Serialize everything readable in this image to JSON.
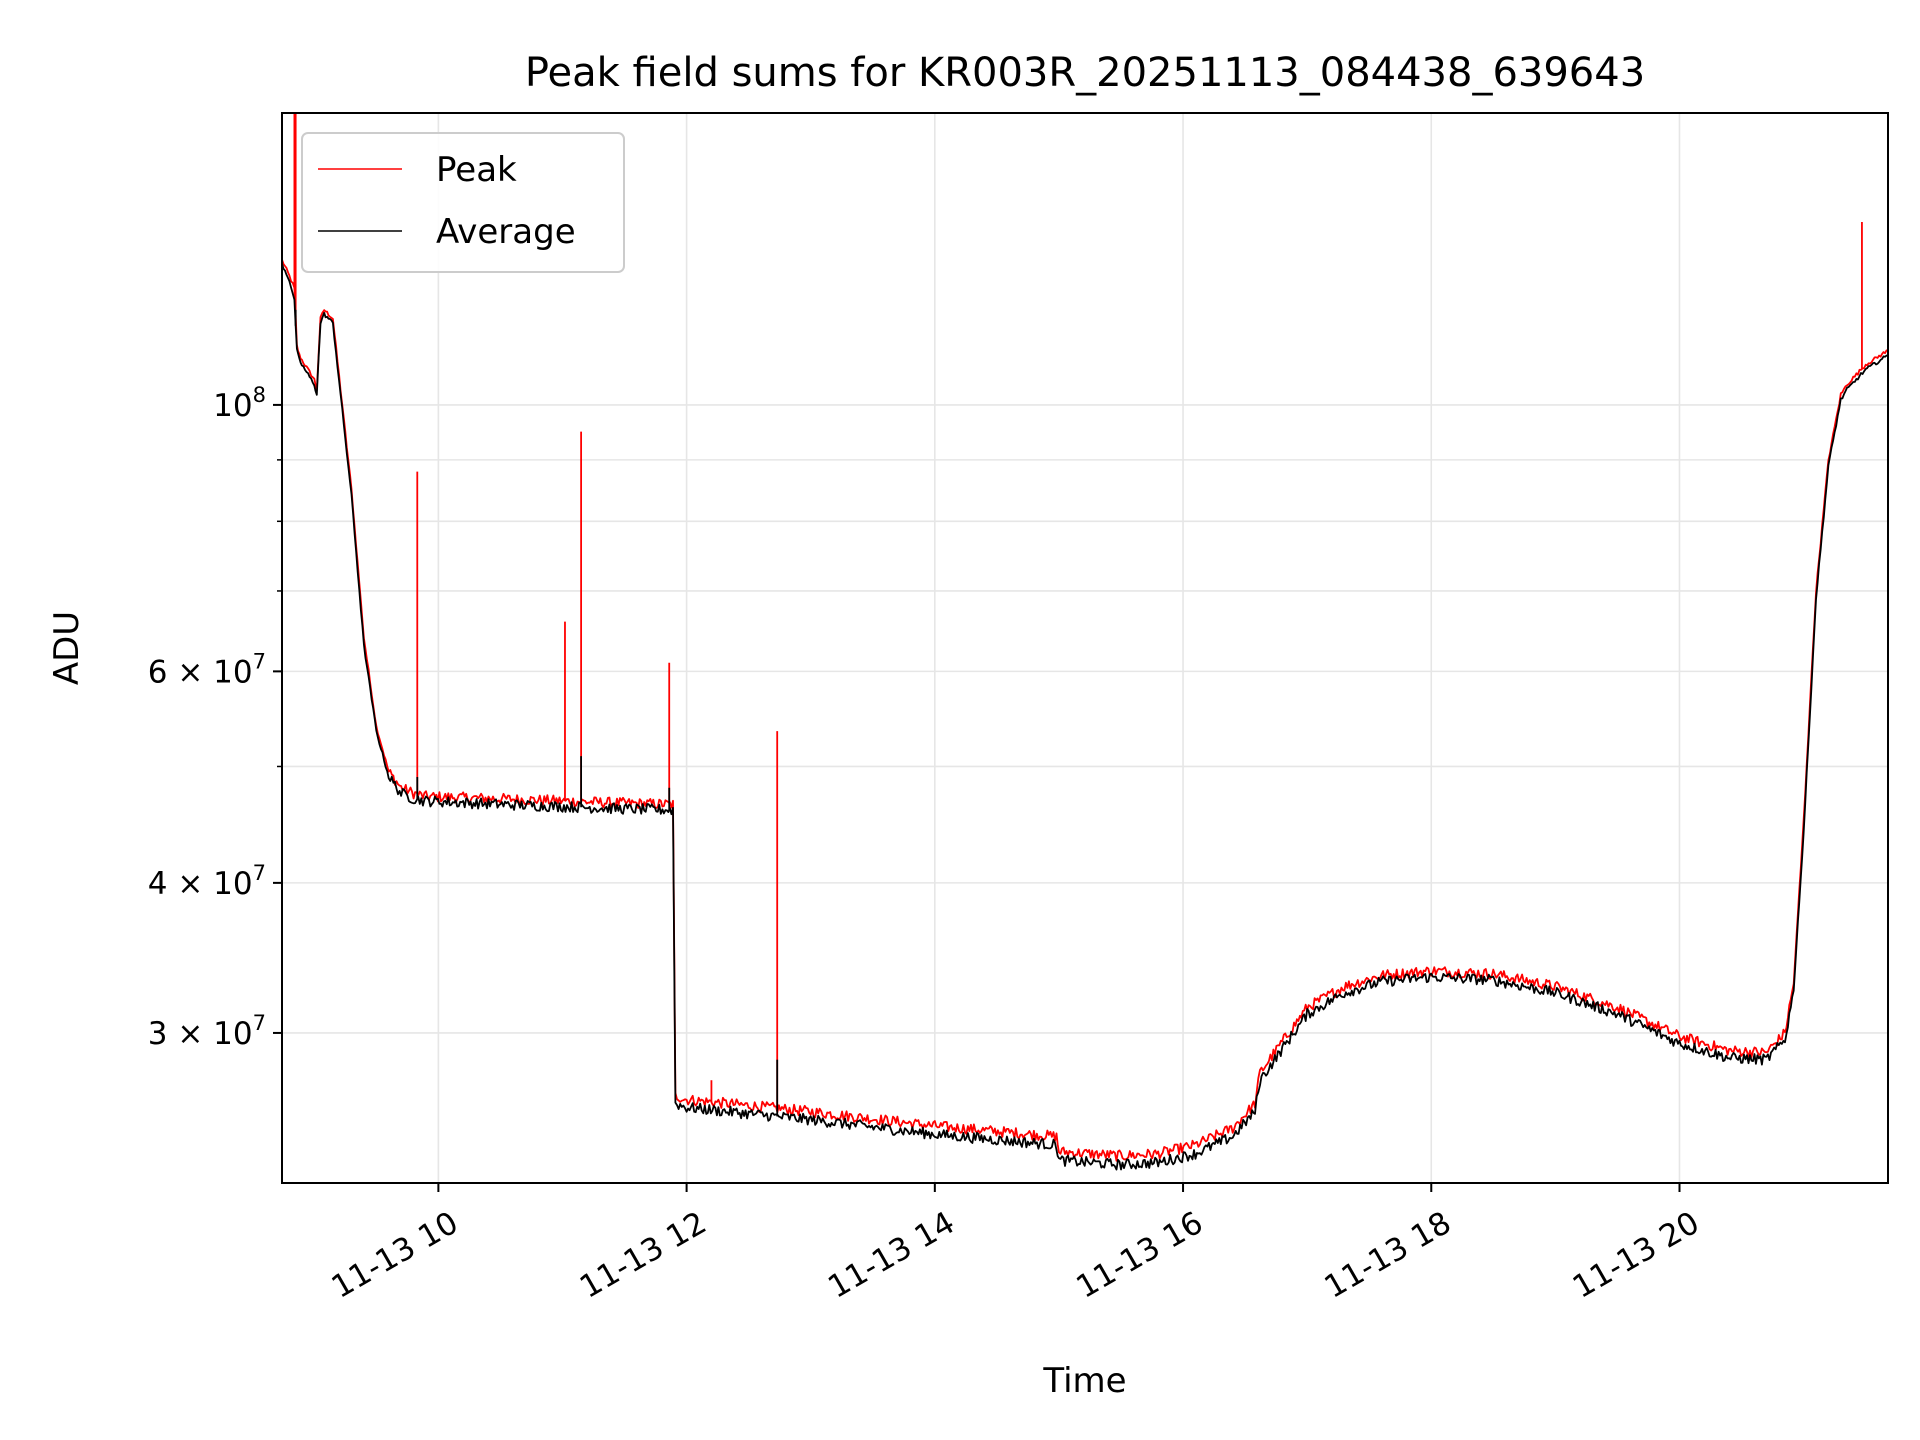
{
  "chart_data": {
    "type": "line",
    "title": "Peak field sums for KR003R_20251113_084438_639643",
    "xlabel": "Time",
    "ylabel": "ADU",
    "yscale": "log",
    "grid": true,
    "legend_position": "top-left",
    "x_unit": "hours on 2025-11-13",
    "xlim": [
      8.74,
      21.68
    ],
    "ylim": [
      22500000,
      175000000
    ],
    "x_ticks": [
      {
        "value": 10,
        "label": "11-13 10"
      },
      {
        "value": 12,
        "label": "11-13 12"
      },
      {
        "value": 14,
        "label": "11-13 14"
      },
      {
        "value": 16,
        "label": "11-13 16"
      },
      {
        "value": 18,
        "label": "11-13 18"
      },
      {
        "value": 20,
        "label": "11-13 20"
      }
    ],
    "y_ticks": [
      {
        "value": 30000000,
        "base": "3",
        "exponent": "7",
        "label": "3 × 10^7"
      },
      {
        "value": 40000000,
        "base": "4",
        "exponent": "7",
        "label": "4 × 10^7"
      },
      {
        "value": 60000000,
        "base": "6",
        "exponent": "7",
        "label": "6 × 10^7"
      },
      {
        "value": 100000000,
        "base": "10",
        "exponent": "8",
        "label": "10^8"
      }
    ],
    "y_minor_ticks": [
      50000000,
      70000000,
      80000000,
      90000000
    ],
    "series": [
      {
        "name": "Peak",
        "color": "#ff0000",
        "x": [
          8.74,
          8.8,
          8.84,
          8.86,
          8.88,
          8.9,
          9.0,
          9.02,
          9.05,
          9.08,
          9.15,
          9.3,
          9.4,
          9.5,
          9.6,
          9.7,
          9.8,
          9.9,
          10.5,
          11.0,
          11.5,
          11.89,
          11.91,
          12.0,
          12.5,
          13.0,
          14.0,
          14.98,
          15.0,
          15.5,
          15.8,
          16.1,
          16.4,
          16.58,
          16.62,
          16.8,
          17.0,
          17.3,
          17.6,
          18.0,
          18.5,
          19.0,
          19.5,
          20.0,
          20.4,
          20.7,
          20.85,
          20.92,
          21.0,
          21.1,
          21.2,
          21.3,
          21.35,
          21.5,
          21.68
        ],
        "y": [
          132000000,
          128000000,
          125000000,
          112000000,
          110000000,
          109000000,
          105000000,
          103000000,
          118000000,
          120000000,
          118000000,
          85000000,
          64000000,
          54000000,
          49500000,
          48000000,
          47500000,
          47200000,
          47000000,
          46800000,
          46600000,
          46500000,
          26600000,
          26400000,
          26100000,
          25800000,
          25100000,
          24600000,
          23900000,
          23700000,
          23800000,
          24200000,
          25000000,
          26200000,
          27800000,
          29500000,
          31500000,
          32800000,
          33500000,
          33800000,
          33600000,
          32800000,
          31500000,
          29800000,
          29000000,
          28900000,
          30000000,
          33000000,
          45000000,
          70000000,
          90000000,
          102000000,
          104000000,
          108000000,
          111000000
        ],
        "spikes": [
          {
            "x": 8.84,
            "y": 175000000
          },
          {
            "x": 8.85,
            "y": 175000000
          },
          {
            "x": 9.83,
            "y": 88000000
          },
          {
            "x": 11.02,
            "y": 66000000
          },
          {
            "x": 11.15,
            "y": 95000000
          },
          {
            "x": 11.86,
            "y": 61000000
          },
          {
            "x": 12.2,
            "y": 27400000
          },
          {
            "x": 12.73,
            "y": 53500000
          },
          {
            "x": 21.47,
            "y": 142000000
          }
        ]
      },
      {
        "name": "Average",
        "color": "#000000",
        "x": [
          8.74,
          8.8,
          8.84,
          8.86,
          8.88,
          8.9,
          9.0,
          9.02,
          9.05,
          9.08,
          9.15,
          9.3,
          9.4,
          9.5,
          9.6,
          9.7,
          9.8,
          9.9,
          10.5,
          11.0,
          11.5,
          11.89,
          11.91,
          12.0,
          12.5,
          13.0,
          14.0,
          14.98,
          15.0,
          15.5,
          15.8,
          16.1,
          16.4,
          16.58,
          16.62,
          16.8,
          17.0,
          17.3,
          17.6,
          18.0,
          18.5,
          19.0,
          19.5,
          20.0,
          20.4,
          20.7,
          20.85,
          20.92,
          21.0,
          21.1,
          21.2,
          21.3,
          21.35,
          21.5,
          21.68
        ],
        "y": [
          131000000,
          127000000,
          122000000,
          111000000,
          109000000,
          108000000,
          104000000,
          102000000,
          117000000,
          119000000,
          117000000,
          84000000,
          63000000,
          53500000,
          49000000,
          47500000,
          47000000,
          46800000,
          46500000,
          46300000,
          46100000,
          46000000,
          26200000,
          26000000,
          25700000,
          25400000,
          24700000,
          24200000,
          23500000,
          23300000,
          23400000,
          23800000,
          24600000,
          25800000,
          27400000,
          29100000,
          31100000,
          32400000,
          33100000,
          33400000,
          33200000,
          32400000,
          31100000,
          29400000,
          28600000,
          28500000,
          29600000,
          32600000,
          44000000,
          69000000,
          89000000,
          101000000,
          103000000,
          107000000,
          110000000
        ],
        "spikes": [
          {
            "x": 8.85,
            "y": 120000000
          },
          {
            "x": 9.83,
            "y": 49000000
          },
          {
            "x": 11.15,
            "y": 51000000
          },
          {
            "x": 11.86,
            "y": 48000000
          },
          {
            "x": 12.73,
            "y": 28500000
          }
        ]
      }
    ]
  }
}
